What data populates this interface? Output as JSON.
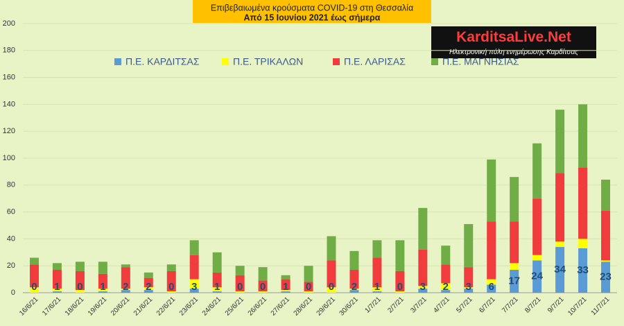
{
  "chart_data": {
    "type": "stacked-bar",
    "title": "Επιβεβαιωμένα κρούσματα COVID-19 στη Θεσσαλία",
    "subtitle": "Από 15 Ιουνίου 2021 έως σήμερα",
    "annotations": [
      "KarditsaLive.Net",
      "Ηλεκτρονική πύλη ενημέρωσης Καρδίτσας"
    ],
    "categories": [
      "16/6/21",
      "17/6/21",
      "18/6/21",
      "19/6/21",
      "20/6/21",
      "21/6/21",
      "22/6/21",
      "23/6/21",
      "24/6/21",
      "25/6/21",
      "26/6/21",
      "27/6/21",
      "28/6/21",
      "29/6/21",
      "30/6/21",
      "1/7/21",
      "2/7/21",
      "3/7/21",
      "4/7/21",
      "5/7/21",
      "6/7/21",
      "7/7/21",
      "8/7/21",
      "9/7/21",
      "10/7/21",
      "11/7/21"
    ],
    "series": [
      {
        "name": "Π.Ε. ΚΑΡΔΙΤΣΑΣ",
        "color": "#5b9bd5",
        "values": [
          0,
          1,
          0,
          1,
          2,
          2,
          0,
          3,
          1,
          0,
          0,
          1,
          0,
          0,
          2,
          1,
          0,
          3,
          2,
          3,
          6,
          17,
          24,
          34,
          33,
          23
        ]
      },
      {
        "name": "Π.Ε. ΤΡΙΚΑΛΩΝ",
        "color": "#ffff00",
        "values": [
          4,
          2,
          2,
          2,
          1,
          2,
          1,
          7,
          3,
          1,
          1,
          1,
          1,
          4,
          1,
          3,
          1,
          2,
          5,
          1,
          4,
          5,
          4,
          4,
          7,
          1
        ]
      },
      {
        "name": "Π.Ε. ΛΑΡΙΣΑΣ",
        "color": "#f03c3c",
        "values": [
          17,
          14,
          14,
          11,
          16,
          7,
          15,
          18,
          11,
          12,
          8,
          8,
          7,
          20,
          14,
          22,
          15,
          27,
          14,
          15,
          43,
          31,
          42,
          51,
          53,
          37
        ]
      },
      {
        "name": "Π.Ε. ΜΑΓΝΗΣΙΑΣ",
        "color": "#70ad47",
        "values": [
          5,
          5,
          7,
          9,
          2,
          4,
          5,
          11,
          15,
          7,
          10,
          3,
          12,
          18,
          14,
          13,
          23,
          31,
          14,
          32,
          46,
          33,
          41,
          47,
          47,
          23
        ]
      }
    ],
    "label_series": 0,
    "ylim": [
      0,
      200
    ],
    "yticks": [
      0,
      20,
      40,
      60,
      80,
      100,
      120,
      140,
      160,
      180,
      200
    ],
    "grid": true,
    "legend": "top"
  }
}
